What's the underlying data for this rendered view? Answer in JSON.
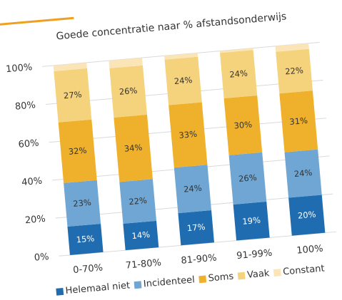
{
  "chart_data": {
    "type": "stacked_bar",
    "title": "Goede concentratie naar % afstandsonderwijs",
    "categories": [
      "0-70%",
      "71-80%",
      "81-90%",
      "91-99%",
      "100%"
    ],
    "series": [
      {
        "name": "Helemaal niet",
        "color": "#1f6db0",
        "values": [
          15,
          14,
          17,
          19,
          20
        ],
        "value_labels": [
          "15%",
          "14%",
          "17%",
          "19%",
          "20%"
        ]
      },
      {
        "name": "Incidenteel",
        "color": "#6fa6d4",
        "values": [
          23,
          22,
          24,
          26,
          24
        ],
        "value_labels": [
          "23%",
          "22%",
          "24%",
          "26%",
          "24%"
        ]
      },
      {
        "name": "Soms",
        "color": "#efb12c",
        "values": [
          32,
          34,
          33,
          30,
          31
        ],
        "value_labels": [
          "32%",
          "34%",
          "33%",
          "30%",
          "31%"
        ]
      },
      {
        "name": "Vaak",
        "color": "#f5d27c",
        "values": [
          27,
          26,
          24,
          24,
          22
        ],
        "value_labels": [
          "27%",
          "26%",
          "24%",
          "24%",
          "22%"
        ]
      },
      {
        "name": "Constant",
        "color": "#fbe5b6",
        "values": [
          3,
          4,
          2,
          1,
          3
        ]
      }
    ],
    "ylim": [
      0,
      100
    ],
    "yticks": [
      {
        "value": 0,
        "label": "0%"
      },
      {
        "value": 20,
        "label": "20%"
      },
      {
        "value": 40,
        "label": "40%"
      },
      {
        "value": 60,
        "label": "60%"
      },
      {
        "value": 80,
        "label": "80%"
      },
      {
        "value": 100,
        "label": "100%"
      }
    ],
    "grid": true
  }
}
